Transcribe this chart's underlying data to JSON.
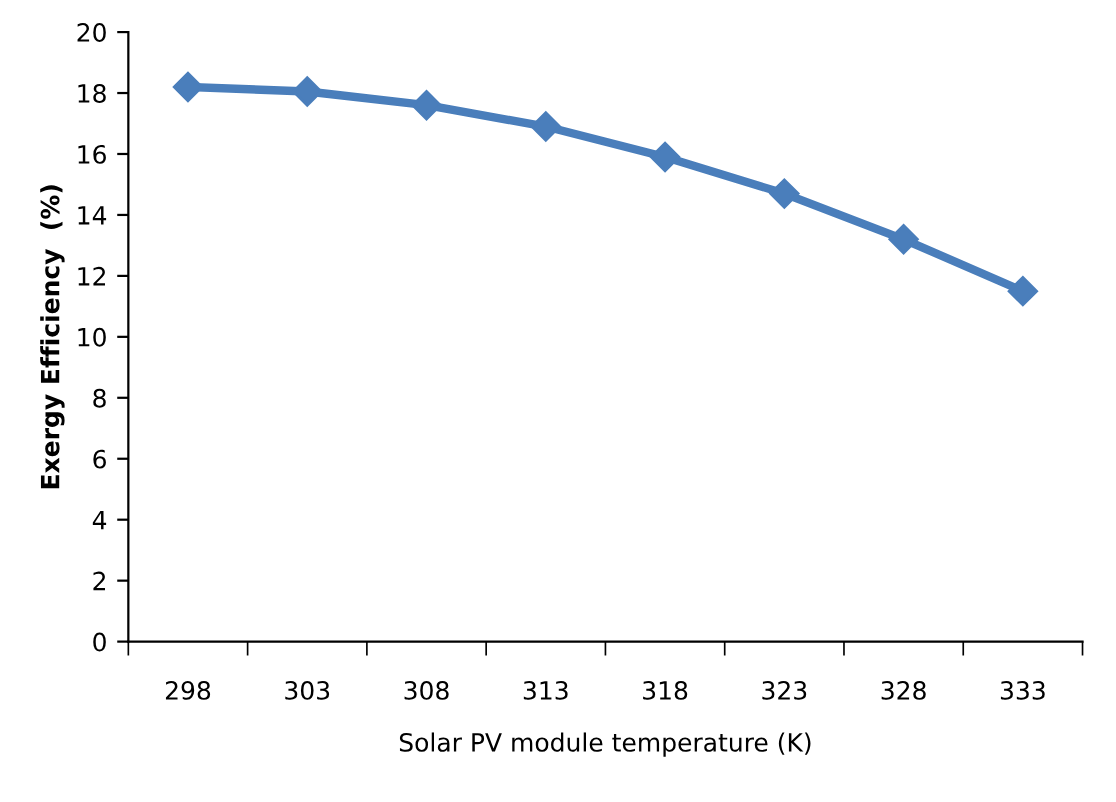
{
  "chart_data": {
    "type": "line",
    "xlabel": "Solar PV module temperature (K)",
    "ylabel": "Exergy Efficiency  (%)",
    "categories": [
      "298",
      "303",
      "308",
      "313",
      "318",
      "323",
      "328",
      "333"
    ],
    "series": [
      {
        "color": "#4a7ebb",
        "values": [
          18.2,
          18.05,
          17.6,
          16.9,
          15.9,
          14.7,
          13.2,
          11.5
        ]
      }
    ],
    "ylim": [
      0,
      20
    ],
    "yticks": [
      0,
      2,
      4,
      6,
      8,
      10,
      12,
      14,
      16,
      18,
      20
    ],
    "grid": false,
    "marker": "diamond",
    "line_style": "solid"
  }
}
